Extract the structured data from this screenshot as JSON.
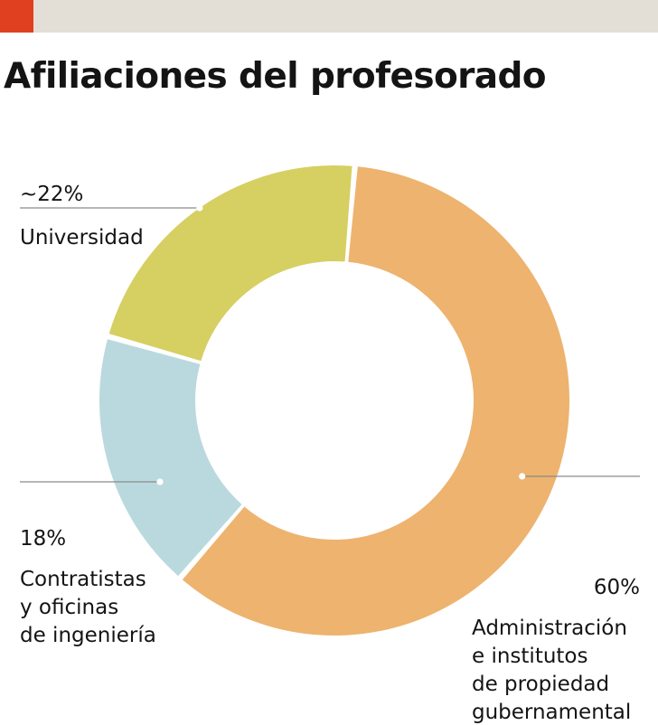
{
  "header": {
    "title": "Afiliaciones del profesorado",
    "accent_color": "#e0401f",
    "bar_color": "#e3ded6"
  },
  "chart_data": {
    "type": "pie",
    "title": "Afiliaciones del profesorado",
    "donut": true,
    "slices": [
      {
        "value": 60,
        "value_label": "60%",
        "label_lines": [
          "Administración",
          "e institutos",
          "de propiedad",
          "gubernamental"
        ],
        "color": "#edb36f"
      },
      {
        "value": 18,
        "value_label": "18%",
        "label_lines": [
          "Contratistas",
          "y oficinas",
          "de ingeniería"
        ],
        "color": "#bad9df"
      },
      {
        "value": 22,
        "value_label": "~22%",
        "label_lines": [
          "Universidad"
        ],
        "color": "#d6cf62"
      }
    ]
  }
}
